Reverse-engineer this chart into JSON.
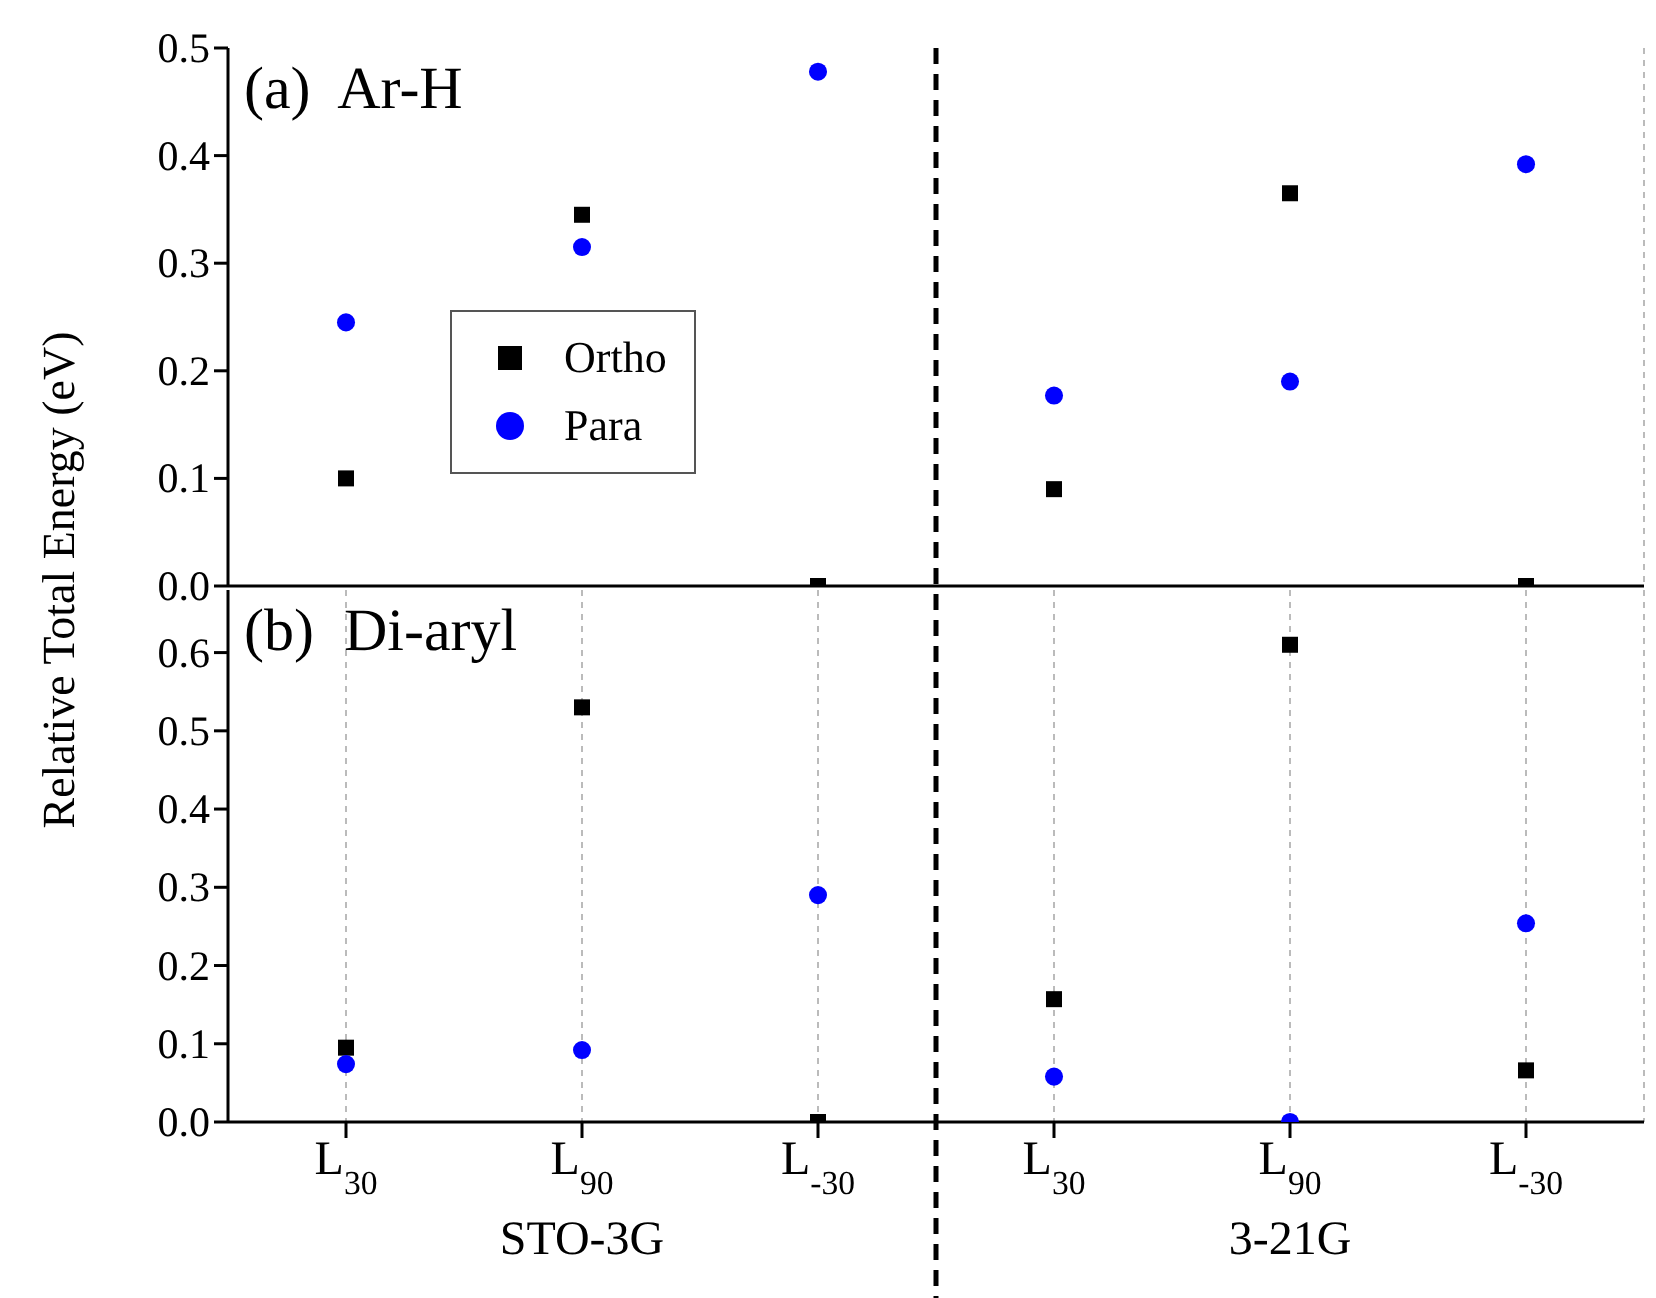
{
  "chart_data": [
    {
      "type": "scatter",
      "title": "(a)  Ar-H",
      "ylabel": "Relative Total Energy (eV)",
      "categories": [
        null,
        null,
        null,
        null,
        null,
        null
      ],
      "ylim": [
        0,
        0.5
      ],
      "yticks": [
        {
          "value": 0,
          "label": "0.0"
        },
        0.1,
        0.2,
        0.3,
        0.4,
        0.5
      ],
      "tick_labels": "y",
      "grid": "x",
      "legend": "left",
      "series": [
        {
          "name": "Ortho",
          "color": "#000000",
          "marker": "square",
          "values": [
            0.1,
            0.345,
            0,
            0.09,
            0.365,
            0
          ]
        },
        {
          "name": "Para",
          "color": "#0000ff",
          "marker": "circle",
          "values": [
            0.245,
            0.315,
            0.478,
            0.177,
            0.19,
            0.392
          ]
        }
      ]
    },
    {
      "type": "scatter",
      "title": "(b)  Di-aryl",
      "categories": [
        "L$_{30}$",
        "L$_{90}$",
        "L$_{-30}$",
        "L$_{30}$",
        "L$_{90}$",
        "L$_{-30}$"
      ],
      "ylim": [
        0,
        0.68
      ],
      "yticks": [
        {
          "value": 0,
          "label": "0.0"
        },
        0.1,
        0.2,
        0.3,
        0.4,
        0.5,
        0.6
      ],
      "grid": "x",
      "annotations": [
        "STO-3G",
        "3-21G"
      ],
      "series": [
        {
          "color": "#000000",
          "marker": "square",
          "values": [
            0.095,
            0.53,
            0,
            0.157,
            0.61,
            0.066
          ]
        },
        {
          "color": "#0000ff",
          "marker": "circle",
          "values": [
            0.074,
            0.092,
            0.29,
            0.058,
            0,
            0.254
          ]
        }
      ]
    }
  ]
}
